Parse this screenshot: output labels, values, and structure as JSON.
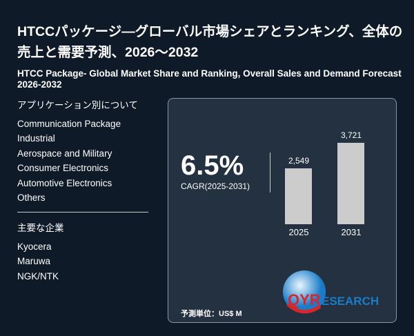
{
  "header": {
    "title_ja": "HTCCパッケージ―グローバル市場シェアとランキング、全体の売上と需要予測、2026～2032",
    "title_en": "HTCC Package- Global Market Share and Ranking, Overall Sales and Demand Forecast 2026-2032"
  },
  "applications": {
    "heading": "アプリケーション別について",
    "items": [
      "Communication Package",
      "Industrial",
      "Aerospace and Military",
      "Consumer Electronics",
      "Automotive Electronics",
      "Others"
    ]
  },
  "companies": {
    "heading": "主要な企業",
    "items": [
      "Kyocera",
      "Maruwa",
      "NGK/NTK"
    ]
  },
  "panel": {
    "cagr_value": "6.5%",
    "cagr_label": "CAGR(2025-2031)",
    "unit_label": "予測単位：US$ M",
    "logo_text": "QYRESEARCH"
  },
  "chart_data": {
    "type": "bar",
    "categories": [
      "2025",
      "2031"
    ],
    "values": [
      2549,
      3721
    ],
    "data_labels": [
      "2,549",
      "3,721"
    ],
    "bar_color": "#cccccc"
  }
}
